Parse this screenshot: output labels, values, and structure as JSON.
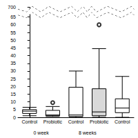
{
  "chart_data": {
    "type": "boxplot",
    "categories": [
      "Control",
      "Probiotic",
      "Control",
      "Probiotic",
      "Control"
    ],
    "group_labels": [
      "0 week",
      "0 week",
      "8 weeks",
      "8 weeks",
      null
    ],
    "values": [
      [
        1,
        2.5,
        4,
        5,
        6.5
      ],
      [
        0.5,
        1,
        1.5,
        4.5,
        7
      ],
      [
        0,
        0.5,
        1.5,
        19.5,
        30
      ],
      [
        0,
        1,
        3.5,
        18.5,
        44.5
      ],
      [
        0,
        3,
        6,
        12,
        26.5
      ]
    ],
    "outliers": [
      [],
      [
        9.5
      ],
      [],
      [
        60
      ],
      []
    ],
    "colors": [
      "#ffffff",
      "#ffffff",
      "#ffffff",
      "#d9d9d9",
      "#ffffff"
    ],
    "marker": "emptyCircle",
    "ylim": [
      0,
      700
    ],
    "yticks": [
      0,
      5,
      10,
      15,
      20,
      25,
      30,
      35,
      40,
      45,
      50,
      55,
      60,
      65,
      700
    ],
    "grid": false
  }
}
